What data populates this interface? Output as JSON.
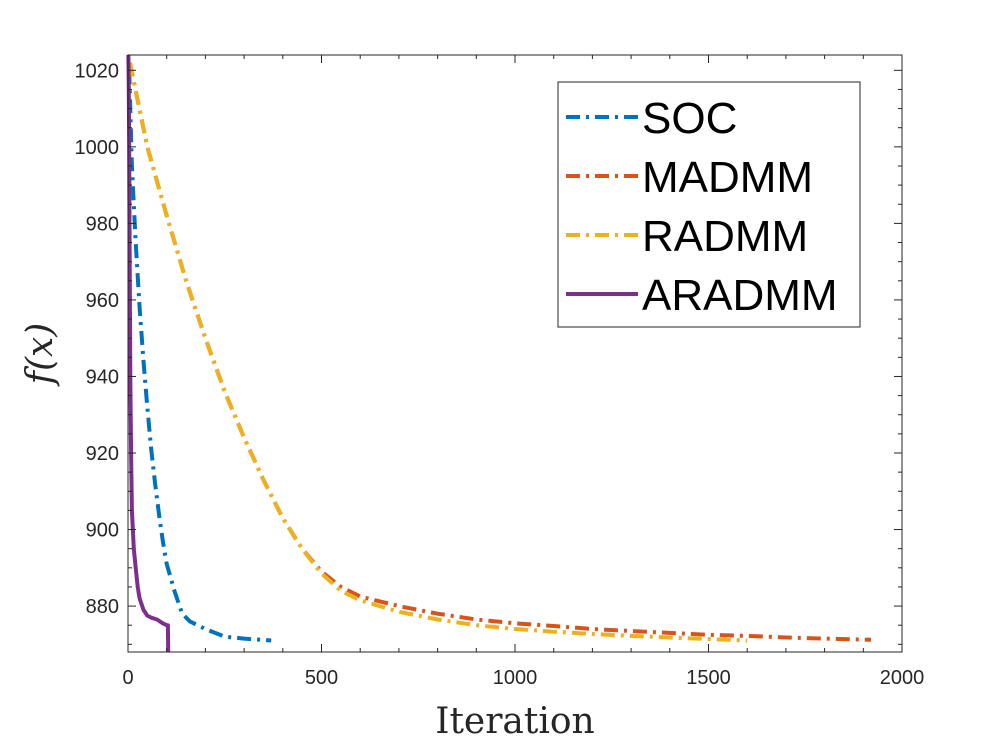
{
  "chart_data": {
    "type": "line",
    "title": "",
    "xlabel": "Iteration",
    "ylabel": "f(x)",
    "xlim": [
      0,
      2000
    ],
    "ylim": [
      868,
      1024
    ],
    "xticks": [
      0,
      500,
      1000,
      1500,
      2000
    ],
    "yticks": [
      880,
      900,
      920,
      940,
      960,
      980,
      1000,
      1020
    ],
    "grid": false,
    "legend_position": "top-right",
    "series": [
      {
        "name": "SOC",
        "color": "#0072BD",
        "style": "dash-dot",
        "x": [
          3,
          10,
          20,
          30,
          40,
          50,
          60,
          70,
          80,
          90,
          100,
          120,
          140,
          160,
          200,
          250,
          300,
          370
        ],
        "y": [
          1020,
          995,
          975,
          958,
          944,
          932,
          921,
          912,
          904,
          897,
          891,
          884,
          878,
          876,
          874,
          872,
          871.5,
          871
        ]
      },
      {
        "name": "MADMM",
        "color": "#D95319",
        "style": "dash-dot",
        "x": [
          5,
          50,
          100,
          150,
          200,
          250,
          300,
          350,
          400,
          450,
          500,
          550,
          600,
          700,
          800,
          900,
          1000,
          1100,
          1200,
          1300,
          1400,
          1500,
          1600,
          1700,
          1800,
          1920
        ],
        "y": [
          1022,
          1000,
          982,
          965,
          950,
          936,
          924,
          913,
          903,
          895,
          889,
          885,
          882.5,
          880,
          878,
          876.5,
          875.5,
          874.8,
          874,
          873.5,
          873,
          872.5,
          872.2,
          871.8,
          871.5,
          871.2
        ]
      },
      {
        "name": "RADMM",
        "color": "#EDB120",
        "style": "dash-dot",
        "x": [
          5,
          50,
          100,
          150,
          200,
          250,
          300,
          350,
          400,
          450,
          500,
          550,
          600,
          700,
          800,
          900,
          1000,
          1100,
          1200,
          1300,
          1400,
          1500,
          1600
        ],
        "y": [
          1022,
          1000,
          982,
          965,
          950,
          936,
          924,
          913,
          903,
          895,
          888.5,
          884,
          881.5,
          878.5,
          876.5,
          875,
          874,
          873.3,
          872.7,
          872.2,
          871.8,
          871.4,
          871
        ]
      },
      {
        "name": "ARADMM",
        "color": "#7E2F8E",
        "style": "solid",
        "x": [
          1,
          2,
          3,
          4,
          5,
          6,
          8,
          10,
          15,
          20,
          25,
          30,
          40,
          50,
          60,
          75,
          90,
          100,
          103,
          104
        ],
        "y": [
          1024,
          1015,
          1000,
          980,
          960,
          940,
          920,
          905,
          895,
          890,
          885,
          882,
          879,
          877.5,
          877,
          876.5,
          875.5,
          875,
          875,
          868
        ]
      }
    ]
  }
}
